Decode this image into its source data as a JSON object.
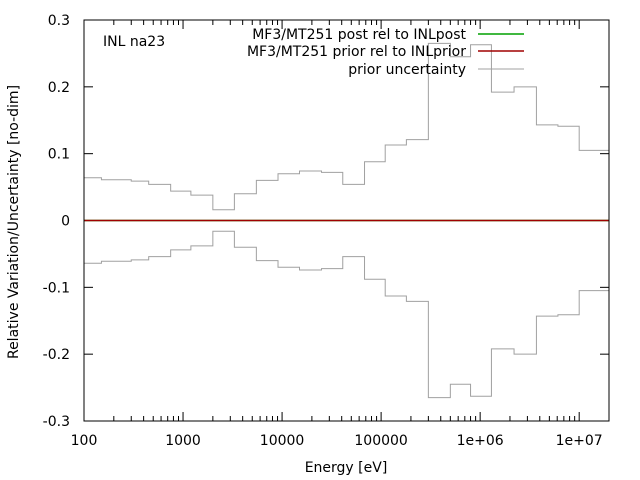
{
  "chart_data": {
    "type": "line",
    "title": "",
    "annotation": "INL na23",
    "xlabel": "Energy [eV]",
    "ylabel": "Relative Variation/Uncertainty [no-dim]",
    "xscale": "log",
    "xlim": [
      100,
      20000000
    ],
    "ylim": [
      -0.3,
      0.3
    ],
    "xticks": [
      {
        "value": 100,
        "label": "100"
      },
      {
        "value": 1000,
        "label": "1000"
      },
      {
        "value": 10000,
        "label": "10000"
      },
      {
        "value": 100000,
        "label": "100000"
      },
      {
        "value": 1000000,
        "label": "1e+06"
      },
      {
        "value": 10000000,
        "label": "1e+07"
      }
    ],
    "yticks": [
      {
        "value": -0.3,
        "label": "-0.3"
      },
      {
        "value": -0.2,
        "label": "-0.2"
      },
      {
        "value": -0.1,
        "label": "-0.1"
      },
      {
        "value": 0,
        "label": "0"
      },
      {
        "value": 0.1,
        "label": "0.1"
      },
      {
        "value": 0.2,
        "label": "0.2"
      },
      {
        "value": 0.3,
        "label": "0.3"
      }
    ],
    "legend_position": "top-right",
    "series": [
      {
        "name": "MF3/MT251 post rel to INLpost",
        "color": "#00a000",
        "kind": "step",
        "x": [
          100,
          20000000
        ],
        "y": [
          0,
          0
        ]
      },
      {
        "name": "MF3/MT251 prior rel to INLprior",
        "color": "#a00000",
        "kind": "step",
        "x": [
          100,
          20000000
        ],
        "y": [
          0,
          0
        ]
      },
      {
        "name": "prior uncertainty",
        "color": "#a0a0a0",
        "kind": "step",
        "mirror": true,
        "x": [
          100,
          150,
          300,
          450,
          750,
          1200,
          2000,
          3300,
          5500,
          9100,
          15000,
          25000,
          41000,
          68000,
          110000,
          180000,
          300000,
          500000,
          800000,
          1300000,
          2200000,
          3700000,
          6100000,
          10000000,
          20000000
        ],
        "y": [
          0.064,
          0.061,
          0.059,
          0.054,
          0.044,
          0.038,
          0.016,
          0.04,
          0.06,
          0.07,
          0.074,
          0.072,
          0.054,
          0.088,
          0.113,
          0.121,
          0.265,
          0.245,
          0.263,
          0.192,
          0.2,
          0.143,
          0.141,
          0.105,
          0.105
        ]
      }
    ]
  }
}
